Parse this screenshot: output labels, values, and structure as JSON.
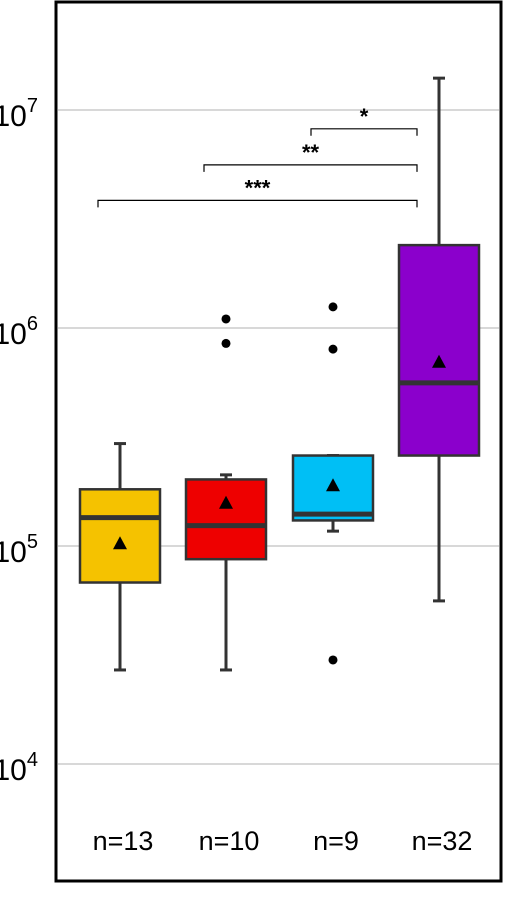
{
  "chart_data": {
    "type": "box",
    "y_scale": "log10",
    "ylim": [
      4000,
      30000000
    ],
    "grid": true,
    "y_ticks": [
      {
        "value": 10000,
        "base": "10",
        "exp": "4"
      },
      {
        "value": 100000,
        "base": "10",
        "exp": "5"
      },
      {
        "value": 1000000,
        "base": "10",
        "exp": "6"
      },
      {
        "value": 10000000,
        "base": "10",
        "exp": "7"
      }
    ],
    "groups": [
      {
        "label": "n=13",
        "color": "#F5C200",
        "whisker_low": 27000,
        "q1": 68000,
        "median": 135000,
        "q3": 182000,
        "whisker_high": 295000,
        "mean": 103000,
        "outliers": []
      },
      {
        "label": "n=10",
        "color": "#EE0000",
        "whisker_low": 27000,
        "q1": 87000,
        "median": 124000,
        "q3": 202000,
        "whisker_high": 212000,
        "mean": 158000,
        "outliers": [
          850000,
          1100000
        ]
      },
      {
        "label": "n=9",
        "color": "#00BFF5",
        "whisker_low": 117000,
        "q1": 131000,
        "median": 140000,
        "q3": 260000,
        "whisker_high": 260000,
        "mean": 190000,
        "outliers": [
          30000,
          800000,
          1250000
        ]
      },
      {
        "label": "n=32",
        "color": "#8B00CC",
        "whisker_low": 56000,
        "q1": 260000,
        "median": 560000,
        "q3": 2400000,
        "whisker_high": 14000000,
        "mean": 700000,
        "outliers": []
      }
    ],
    "significance": [
      {
        "from": 2,
        "to": 3,
        "y": 8200000,
        "label": "*"
      },
      {
        "from": 1,
        "to": 3,
        "y": 5600000,
        "label": "**"
      },
      {
        "from": 0,
        "to": 3,
        "y": 3850000,
        "label": "***"
      }
    ]
  }
}
